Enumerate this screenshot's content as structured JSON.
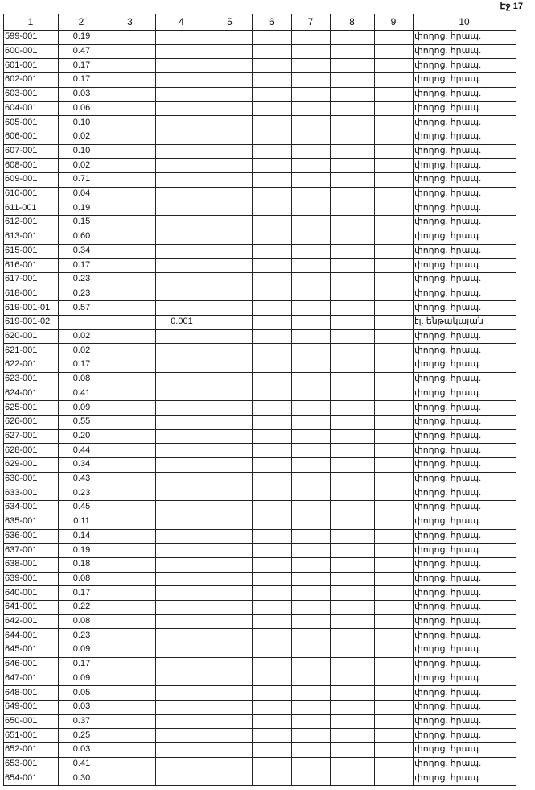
{
  "page_label": "Էջ 17",
  "table": {
    "header": [
      "1",
      "2",
      "3",
      "4",
      "5",
      "6",
      "7",
      "8",
      "9",
      "10"
    ],
    "rows": [
      {
        "c1": "599-001",
        "c2": "0.19",
        "c10": "փողոց. հրապ."
      },
      {
        "c1": "600-001",
        "c2": "0.47",
        "c10": "փողոց. հրապ."
      },
      {
        "c1": "601-001",
        "c2": "0.17",
        "c10": "փողոց. հրապ."
      },
      {
        "c1": "602-001",
        "c2": "0.17",
        "c10": "փողոց. հրապ."
      },
      {
        "c1": "603-001",
        "c2": "0.03",
        "c10": "փողոց. հրապ."
      },
      {
        "c1": "604-001",
        "c2": "0.06",
        "c10": "փողոց. հրապ."
      },
      {
        "c1": "605-001",
        "c2": "0.10",
        "c10": "փողոց. հրապ."
      },
      {
        "c1": "606-001",
        "c2": "0.02",
        "c10": "փողոց. հրապ."
      },
      {
        "c1": "607-001",
        "c2": "0.10",
        "c10": "փողոց. հրապ."
      },
      {
        "c1": "608-001",
        "c2": "0.02",
        "c10": "փողոց. հրապ."
      },
      {
        "c1": "609-001",
        "c2": "0.71",
        "c10": "փողոց. հրապ."
      },
      {
        "c1": "610-001",
        "c2": "0.04",
        "c10": "փողոց. հրապ."
      },
      {
        "c1": "611-001",
        "c2": "0.19",
        "c10": "փողոց. հրապ."
      },
      {
        "c1": "612-001",
        "c2": "0.15",
        "c10": "փողոց. հրապ."
      },
      {
        "c1": "613-001",
        "c2": "0.60",
        "c10": "փողոց. հրապ."
      },
      {
        "c1": "615-001",
        "c2": "0.34",
        "c10": "փողոց. հրապ."
      },
      {
        "c1": "616-001",
        "c2": "0.17",
        "c10": "փողոց. հրապ."
      },
      {
        "c1": "617-001",
        "c2": "0.23",
        "c10": "փողոց. հրապ."
      },
      {
        "c1": "618-001",
        "c2": "0.23",
        "c10": "փողոց. հրապ."
      },
      {
        "c1": "619-001-01",
        "c2": "0.57",
        "c10": "փողոց. հրապ."
      },
      {
        "c1": "619-001-02",
        "c4": "0.001",
        "c10": "էլ. ենթակայան"
      },
      {
        "c1": "620-001",
        "c2": "0.02",
        "c10": "փողոց. հրապ."
      },
      {
        "c1": "621-001",
        "c2": "0.02",
        "c10": "փողոց. հրապ."
      },
      {
        "c1": "622-001",
        "c2": "0.17",
        "c10": "փողոց. հրապ."
      },
      {
        "c1": "623-001",
        "c2": "0.08",
        "c10": "փողոց. հրապ."
      },
      {
        "c1": "624-001",
        "c2": "0.41",
        "c10": "փողոց. հրապ."
      },
      {
        "c1": "625-001",
        "c2": "0.09",
        "c10": "փողոց. հրապ."
      },
      {
        "c1": "626-001",
        "c2": "0.55",
        "c10": "փողոց. հրապ."
      },
      {
        "c1": "627-001",
        "c2": "0.20",
        "c10": "փողոց. հրապ."
      },
      {
        "c1": "628-001",
        "c2": "0.44",
        "c10": "փողոց. հրապ."
      },
      {
        "c1": "629-001",
        "c2": "0.34",
        "c10": "փողոց. հրապ."
      },
      {
        "c1": "630-001",
        "c2": "0.43",
        "c10": "փողոց. հրապ."
      },
      {
        "c1": "633-001",
        "c2": "0.23",
        "c10": "փողոց. հրապ."
      },
      {
        "c1": "634-001",
        "c2": "0.45",
        "c10": "փողոց. հրապ."
      },
      {
        "c1": "635-001",
        "c2": "0.11",
        "c10": "փողոց. հրապ."
      },
      {
        "c1": "636-001",
        "c2": "0.14",
        "c10": "փողոց. հրապ."
      },
      {
        "c1": "637-001",
        "c2": "0.19",
        "c10": "փողոց. հրապ."
      },
      {
        "c1": "638-001",
        "c2": "0.18",
        "c10": "փողոց. հրապ."
      },
      {
        "c1": "639-001",
        "c2": "0.08",
        "c10": "փողոց. հրապ."
      },
      {
        "c1": "640-001",
        "c2": "0.17",
        "c10": "փողոց. հրապ."
      },
      {
        "c1": "641-001",
        "c2": "0.22",
        "c10": "փողոց. հրապ."
      },
      {
        "c1": "642-001",
        "c2": "0.08",
        "c10": "փողոց. հրապ."
      },
      {
        "c1": "644-001",
        "c2": "0.23",
        "c10": "փողոց. հրապ."
      },
      {
        "c1": "645-001",
        "c2": "0.09",
        "c10": "փողոց. հրապ."
      },
      {
        "c1": "646-001",
        "c2": "0.17",
        "c10": "փողոց. հրապ."
      },
      {
        "c1": "647-001",
        "c2": "0.09",
        "c10": "փողոց. հրապ."
      },
      {
        "c1": "648-001",
        "c2": "0.05",
        "c10": "փողոց. հրապ."
      },
      {
        "c1": "649-001",
        "c2": "0.03",
        "c10": "փողոց. հրապ."
      },
      {
        "c1": "650-001",
        "c2": "0.37",
        "c10": "փողոց. հրապ."
      },
      {
        "c1": "651-001",
        "c2": "0.25",
        "c10": "փողոց. հրապ."
      },
      {
        "c1": "652-001",
        "c2": "0.03",
        "c10": "փողոց. հրապ."
      },
      {
        "c1": "653-001",
        "c2": "0.41",
        "c10": "փողոց. հրապ."
      },
      {
        "c1": "654-001",
        "c2": "0.30",
        "c10": "փողոց. հրապ."
      }
    ]
  }
}
